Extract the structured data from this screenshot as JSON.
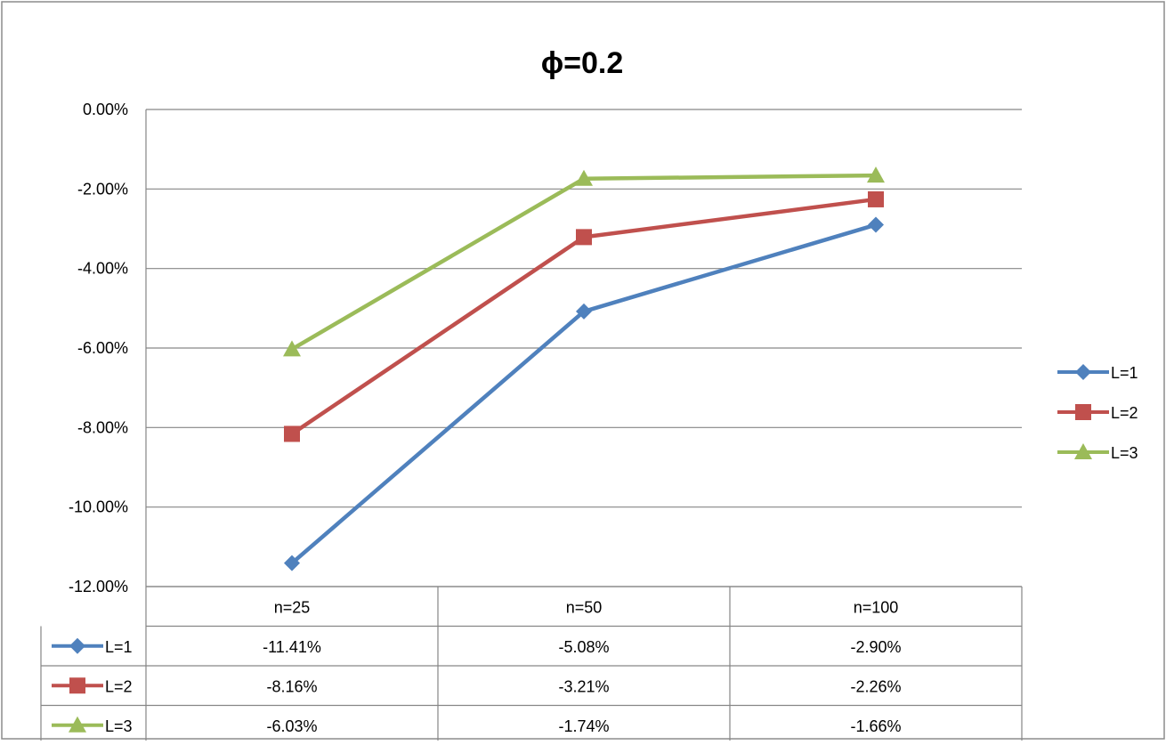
{
  "chart_data": {
    "type": "line",
    "title": "ϕ=0.2",
    "categories": [
      "n=25",
      "n=50",
      "n=100"
    ],
    "y_ticks": [
      "0.00%",
      "-2.00%",
      "-4.00%",
      "-6.00%",
      "-8.00%",
      "-10.00%",
      "-12.00%"
    ],
    "ylim": [
      -12,
      0
    ],
    "y_unit": "%",
    "grid": true,
    "legend_position": "right",
    "data_table": true,
    "series": [
      {
        "name": "L=1",
        "values": [
          -11.41,
          -5.08,
          -2.9
        ],
        "labels": [
          "-11.41%",
          "-5.08%",
          "-2.90%"
        ],
        "color": "#4F81BD",
        "marker": "diamond"
      },
      {
        "name": "L=2",
        "values": [
          -8.16,
          -3.21,
          -2.26
        ],
        "labels": [
          "-8.16%",
          "-3.21%",
          "-2.26%"
        ],
        "color": "#C0504D",
        "marker": "square"
      },
      {
        "name": "L=3",
        "values": [
          -6.03,
          -1.74,
          -1.66
        ],
        "labels": [
          "-6.03%",
          "-1.74%",
          "-1.66%"
        ],
        "color": "#9BBB59",
        "marker": "triangle"
      }
    ]
  }
}
